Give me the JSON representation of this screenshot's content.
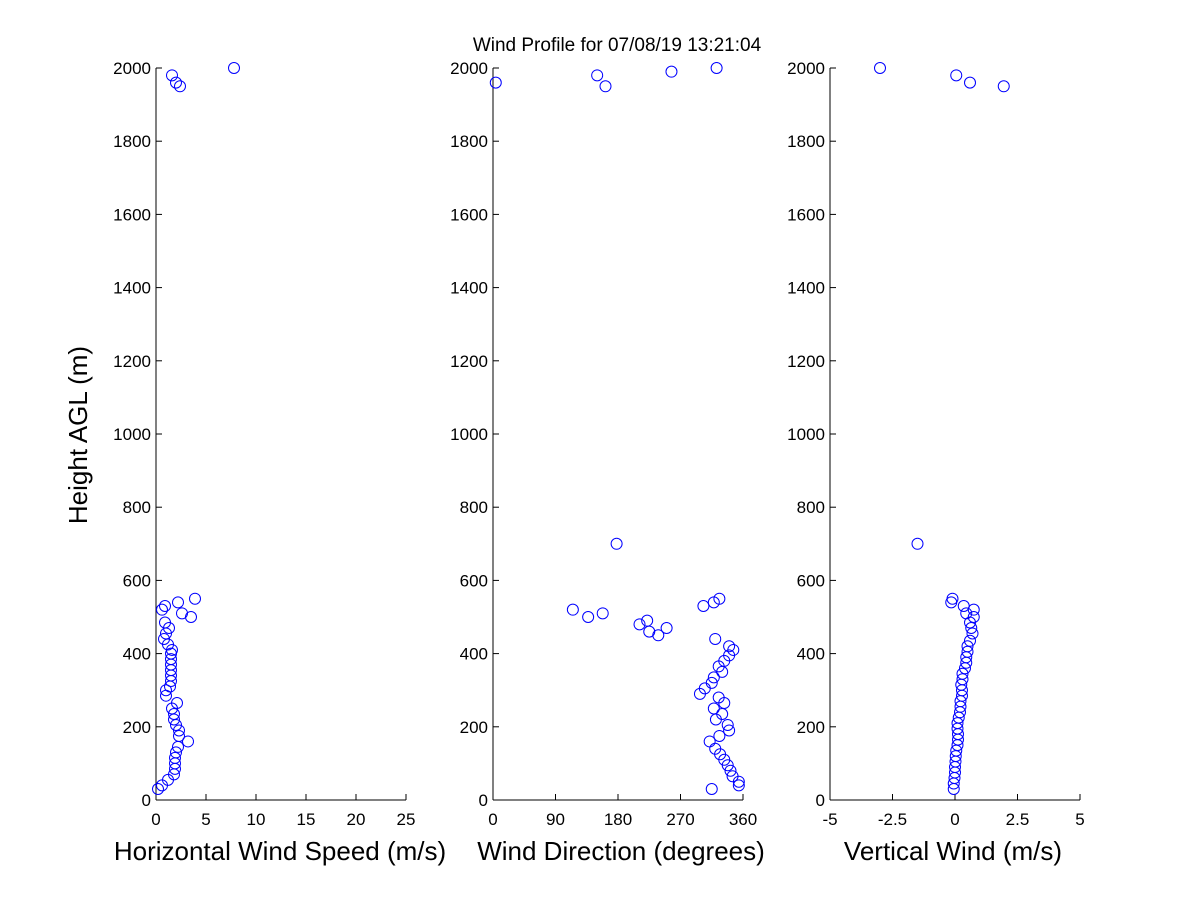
{
  "title": "Wind Profile for  07/08/19 13:21:04",
  "marker_color": "#0000FF",
  "chart_data": [
    {
      "type": "scatter",
      "xlabel": "Horizontal Wind Speed (m/s)",
      "ylabel": "Height AGL (m)",
      "xlim": [
        0,
        25
      ],
      "ylim": [
        0,
        2000
      ],
      "x_ticks": [
        0,
        5,
        10,
        15,
        20,
        25
      ],
      "x_tick_labels": [
        "0",
        "5",
        "10",
        "15",
        "20",
        "25"
      ],
      "y_ticks": [
        0,
        200,
        400,
        600,
        800,
        1000,
        1200,
        1400,
        1600,
        1800,
        2000
      ],
      "y_tick_labels": [
        "0",
        "200",
        "400",
        "600",
        "800",
        "1000",
        "1200",
        "1400",
        "1600",
        "1800",
        "2000"
      ],
      "grid": false,
      "points": [
        [
          0.2,
          30
        ],
        [
          0.6,
          40
        ],
        [
          1.2,
          55
        ],
        [
          1.8,
          70
        ],
        [
          1.9,
          85
        ],
        [
          1.9,
          100
        ],
        [
          1.9,
          115
        ],
        [
          2.0,
          130
        ],
        [
          2.2,
          145
        ],
        [
          3.2,
          160
        ],
        [
          2.3,
          175
        ],
        [
          2.3,
          190
        ],
        [
          2.0,
          205
        ],
        [
          1.8,
          220
        ],
        [
          1.8,
          235
        ],
        [
          1.6,
          250
        ],
        [
          2.1,
          265
        ],
        [
          1.0,
          285
        ],
        [
          1.0,
          300
        ],
        [
          1.4,
          310
        ],
        [
          1.5,
          325
        ],
        [
          1.5,
          340
        ],
        [
          1.5,
          355
        ],
        [
          1.5,
          370
        ],
        [
          1.5,
          385
        ],
        [
          1.5,
          400
        ],
        [
          1.6,
          410
        ],
        [
          1.2,
          425
        ],
        [
          0.8,
          440
        ],
        [
          1.0,
          455
        ],
        [
          1.3,
          470
        ],
        [
          0.9,
          485
        ],
        [
          3.5,
          500
        ],
        [
          2.6,
          510
        ],
        [
          0.6,
          520
        ],
        [
          0.9,
          530
        ],
        [
          2.2,
          540
        ],
        [
          3.9,
          550
        ],
        [
          2.4,
          1950
        ],
        [
          2.0,
          1960
        ],
        [
          1.6,
          1980
        ],
        [
          7.8,
          2000
        ]
      ]
    },
    {
      "type": "scatter",
      "xlabel": "Wind Direction (degrees)",
      "ylabel": "",
      "xlim": [
        0,
        360
      ],
      "ylim": [
        0,
        2000
      ],
      "x_ticks": [
        0,
        90,
        180,
        270,
        360
      ],
      "x_tick_labels": [
        "0",
        "90",
        "180",
        "270",
        "360"
      ],
      "y_ticks": [
        0,
        200,
        400,
        600,
        800,
        1000,
        1200,
        1400,
        1600,
        1800,
        2000
      ],
      "y_tick_labels": [
        "0",
        "200",
        "400",
        "600",
        "800",
        "1000",
        "1200",
        "1400",
        "1600",
        "1800",
        "2000"
      ],
      "grid": false,
      "points": [
        [
          315,
          30
        ],
        [
          354,
          40
        ],
        [
          354,
          50
        ],
        [
          345,
          65
        ],
        [
          342,
          80
        ],
        [
          338,
          95
        ],
        [
          333,
          110
        ],
        [
          327,
          125
        ],
        [
          320,
          140
        ],
        [
          312,
          160
        ],
        [
          326,
          175
        ],
        [
          340,
          190
        ],
        [
          338,
          205
        ],
        [
          321,
          220
        ],
        [
          330,
          235
        ],
        [
          318,
          250
        ],
        [
          333,
          265
        ],
        [
          325,
          280
        ],
        [
          298,
          290
        ],
        [
          305,
          305
        ],
        [
          315,
          320
        ],
        [
          318,
          335
        ],
        [
          330,
          350
        ],
        [
          325,
          365
        ],
        [
          333,
          380
        ],
        [
          340,
          395
        ],
        [
          346,
          410
        ],
        [
          340,
          420
        ],
        [
          320,
          440
        ],
        [
          238,
          450
        ],
        [
          225,
          460
        ],
        [
          250,
          470
        ],
        [
          211,
          480
        ],
        [
          222,
          490
        ],
        [
          137,
          500
        ],
        [
          158,
          510
        ],
        [
          115,
          520
        ],
        [
          303,
          530
        ],
        [
          318,
          540
        ],
        [
          326,
          550
        ],
        [
          178,
          700
        ],
        [
          4,
          1960
        ],
        [
          162,
          1950
        ],
        [
          150,
          1980
        ],
        [
          257,
          1990
        ],
        [
          322,
          2000
        ]
      ]
    },
    {
      "type": "scatter",
      "xlabel": "Vertical Wind (m/s)",
      "ylabel": "",
      "xlim": [
        -5,
        5
      ],
      "ylim": [
        0,
        2000
      ],
      "x_ticks": [
        -5,
        -2.5,
        0,
        2.5,
        5
      ],
      "x_tick_labels": [
        "-5",
        "-2.5",
        "0",
        "2.5",
        "5"
      ],
      "y_ticks": [
        0,
        200,
        400,
        600,
        800,
        1000,
        1200,
        1400,
        1600,
        1800,
        2000
      ],
      "y_tick_labels": [
        "0",
        "200",
        "400",
        "600",
        "800",
        "1000",
        "1200",
        "1400",
        "1600",
        "1800",
        "2000"
      ],
      "grid": false,
      "points": [
        [
          -0.05,
          30
        ],
        [
          -0.05,
          45
        ],
        [
          -0.02,
          60
        ],
        [
          0.0,
          75
        ],
        [
          0.0,
          90
        ],
        [
          0.02,
          105
        ],
        [
          0.03,
          120
        ],
        [
          0.05,
          135
        ],
        [
          0.1,
          150
        ],
        [
          0.12,
          165
        ],
        [
          0.12,
          180
        ],
        [
          0.1,
          195
        ],
        [
          0.1,
          210
        ],
        [
          0.15,
          225
        ],
        [
          0.2,
          240
        ],
        [
          0.22,
          255
        ],
        [
          0.22,
          270
        ],
        [
          0.28,
          285
        ],
        [
          0.28,
          300
        ],
        [
          0.25,
          315
        ],
        [
          0.3,
          330
        ],
        [
          0.3,
          345
        ],
        [
          0.4,
          360
        ],
        [
          0.45,
          375
        ],
        [
          0.45,
          390
        ],
        [
          0.5,
          405
        ],
        [
          0.5,
          420
        ],
        [
          0.6,
          435
        ],
        [
          0.7,
          455
        ],
        [
          0.65,
          470
        ],
        [
          0.6,
          485
        ],
        [
          0.75,
          500
        ],
        [
          0.45,
          510
        ],
        [
          0.75,
          520
        ],
        [
          0.35,
          530
        ],
        [
          -0.15,
          540
        ],
        [
          -0.1,
          550
        ],
        [
          -1.5,
          700
        ],
        [
          1.95,
          1950
        ],
        [
          0.6,
          1960
        ],
        [
          0.05,
          1980
        ],
        [
          -3.0,
          2000
        ]
      ]
    }
  ]
}
